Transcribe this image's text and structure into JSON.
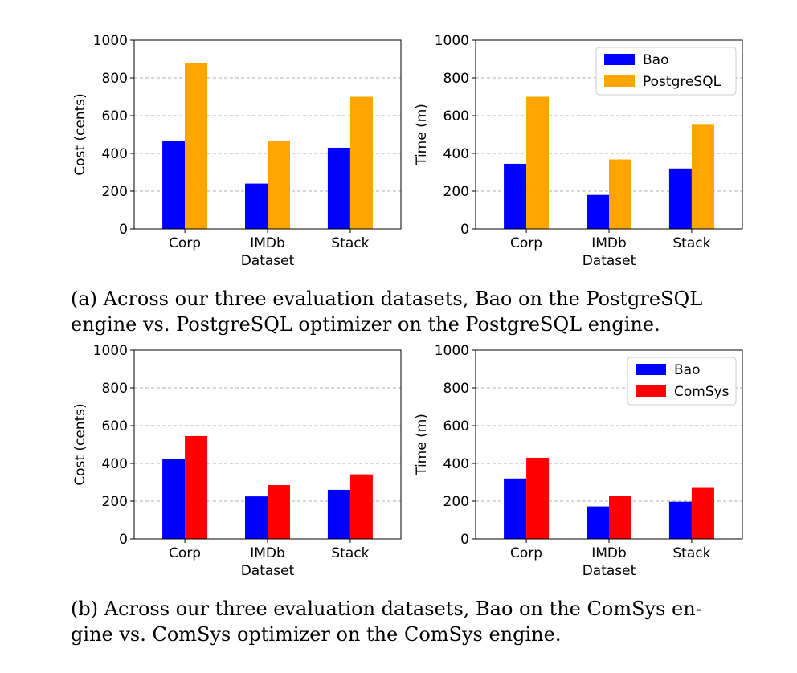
{
  "chart_data": [
    {
      "type": "bar",
      "categories": [
        "Corp",
        "IMDb",
        "Stack"
      ],
      "series": [
        {
          "name": "Bao",
          "values": [
            465,
            240,
            430
          ],
          "color": "#0000ff"
        },
        {
          "name": "PostgreSQL",
          "values": [
            880,
            465,
            700
          ],
          "color": "#ffa500"
        }
      ],
      "title": "",
      "xlabel": "Dataset",
      "ylabel": "Cost (cents)",
      "ylim": [
        0,
        1000
      ],
      "yticks": [
        "0",
        "200",
        "400",
        "600",
        "800",
        "1000"
      ],
      "grid": true,
      "legend": null
    },
    {
      "type": "bar",
      "categories": [
        "Corp",
        "IMDb",
        "Stack"
      ],
      "series": [
        {
          "name": "Bao",
          "values": [
            345,
            180,
            320
          ],
          "color": "#0000ff"
        },
        {
          "name": "PostgreSQL",
          "values": [
            700,
            368,
            552
          ],
          "color": "#ffa500"
        }
      ],
      "title": "",
      "xlabel": "Dataset",
      "ylabel": "Time (m)",
      "ylim": [
        0,
        1000
      ],
      "yticks": [
        "0",
        "200",
        "400",
        "600",
        "800",
        "1000"
      ],
      "grid": true,
      "legend": "top-right"
    },
    {
      "type": "bar",
      "categories": [
        "Corp",
        "IMDb",
        "Stack"
      ],
      "series": [
        {
          "name": "Bao",
          "values": [
            425,
            225,
            260
          ],
          "color": "#0000ff"
        },
        {
          "name": "ComSys",
          "values": [
            545,
            285,
            342
          ],
          "color": "#ff0000"
        }
      ],
      "title": "",
      "xlabel": "Dataset",
      "ylabel": "Cost (cents)",
      "ylim": [
        0,
        1000
      ],
      "yticks": [
        "0",
        "200",
        "400",
        "600",
        "800",
        "1000"
      ],
      "grid": true,
      "legend": null
    },
    {
      "type": "bar",
      "categories": [
        "Corp",
        "IMDb",
        "Stack"
      ],
      "series": [
        {
          "name": "Bao",
          "values": [
            320,
            172,
            197
          ],
          "color": "#0000ff"
        },
        {
          "name": "ComSys",
          "values": [
            430,
            226,
            270
          ],
          "color": "#ff0000"
        }
      ],
      "title": "",
      "xlabel": "Dataset",
      "ylabel": "Time (m)",
      "ylim": [
        0,
        1000
      ],
      "yticks": [
        "0",
        "200",
        "400",
        "600",
        "800",
        "1000"
      ],
      "grid": true,
      "legend": "top-right"
    }
  ],
  "captions": {
    "a": {
      "line1": "(a) Across our three evaluation datasets, Bao on the PostgreSQL",
      "line2": "engine vs. PostgreSQL optimizer on the PostgreSQL engine."
    },
    "b": {
      "line1": "(b) Across our three evaluation datasets, Bao on the ComSys en-",
      "line2": "gine vs. ComSys optimizer on the ComSys engine."
    }
  }
}
